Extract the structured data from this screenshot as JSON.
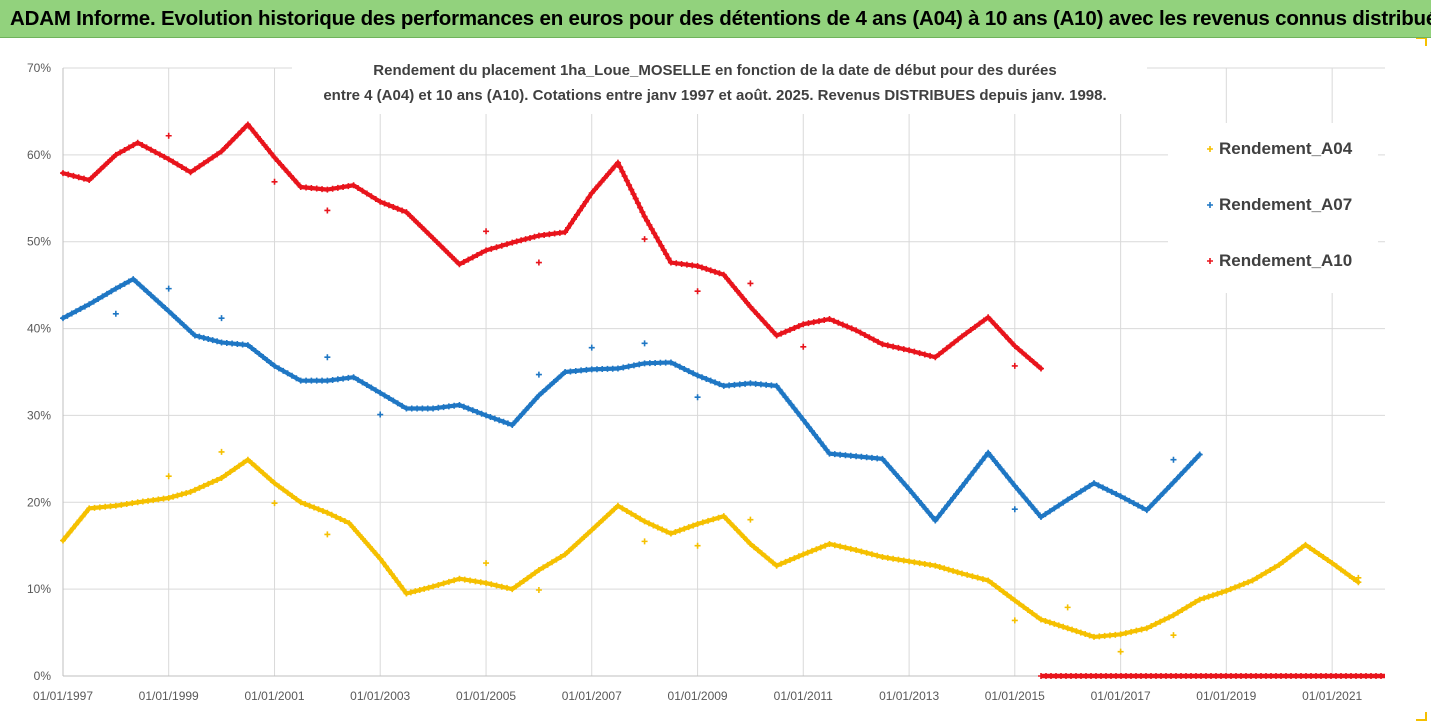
{
  "banner": {
    "title": "ADAM Informe. Evolution historique des performances en euros pour des détentions de 4 ans (A04) à 10 ans (A10) avec les revenus connus distribués"
  },
  "chart_data": {
    "type": "scatter",
    "title_line1": "Rendement du placement 1ha_Loue_MOSELLE en fonction de la date de début pour des durées",
    "title_line2": "entre 4 (A04) et 10 ans (A10). Cotations entre janv 1997 et août. 2025. Revenus DISTRIBUES depuis janv. 1998.",
    "xlabel": "",
    "ylabel": "",
    "x_range": [
      "1997-01-01",
      "2022-01-01"
    ],
    "ylim": [
      0,
      0.7
    ],
    "y_ticks": [
      0,
      0.1,
      0.2,
      0.3,
      0.4,
      0.5,
      0.6,
      0.7
    ],
    "y_tick_labels": [
      "0%",
      "10%",
      "20%",
      "30%",
      "40%",
      "50%",
      "60%",
      "70%"
    ],
    "x_tick_labels": [
      "01/01/1997",
      "01/01/1999",
      "01/01/2001",
      "01/01/2003",
      "01/01/2005",
      "01/01/2007",
      "01/01/2009",
      "01/01/2011",
      "01/01/2013",
      "01/01/2015",
      "01/01/2017",
      "01/01/2019",
      "01/01/2021"
    ],
    "x_tick_dates": [
      "1997-01-01",
      "1999-01-01",
      "2001-01-01",
      "2003-01-01",
      "2005-01-01",
      "2007-01-01",
      "2009-01-01",
      "2011-01-01",
      "2013-01-01",
      "2015-01-01",
      "2017-01-01",
      "2019-01-01",
      "2021-01-01"
    ],
    "grid": true,
    "legend_position": "right",
    "series": [
      {
        "name": "Rendement_A04",
        "color": "#f5c000",
        "points": [
          [
            "1997-01-01",
            0.156
          ],
          [
            "1997-07-01",
            0.193
          ],
          [
            "1998-01-01",
            0.196
          ],
          [
            "1998-06-01",
            0.2
          ],
          [
            "1999-01-01",
            0.205
          ],
          [
            "1999-06-01",
            0.212
          ],
          [
            "2000-01-01",
            0.228
          ],
          [
            "2000-07-01",
            0.249
          ],
          [
            "2001-01-01",
            0.222
          ],
          [
            "2001-07-01",
            0.2
          ],
          [
            "2002-01-01",
            0.188
          ],
          [
            "2002-06-01",
            0.176
          ],
          [
            "2003-01-01",
            0.135
          ],
          [
            "2003-07-01",
            0.095
          ],
          [
            "2004-01-01",
            0.103
          ],
          [
            "2004-07-01",
            0.112
          ],
          [
            "2005-01-01",
            0.107
          ],
          [
            "2005-07-01",
            0.1
          ],
          [
            "2006-01-01",
            0.122
          ],
          [
            "2006-07-01",
            0.14
          ],
          [
            "2007-01-01",
            0.168
          ],
          [
            "2007-07-01",
            0.196
          ],
          [
            "2008-01-01",
            0.178
          ],
          [
            "2008-07-01",
            0.164
          ],
          [
            "2009-01-01",
            0.175
          ],
          [
            "2009-07-01",
            0.184
          ],
          [
            "2010-01-01",
            0.152
          ],
          [
            "2010-07-01",
            0.127
          ],
          [
            "2011-01-01",
            0.14
          ],
          [
            "2011-07-01",
            0.152
          ],
          [
            "2012-01-01",
            0.145
          ],
          [
            "2012-07-01",
            0.137
          ],
          [
            "2013-01-01",
            0.132
          ],
          [
            "2013-07-01",
            0.127
          ],
          [
            "2014-01-01",
            0.118
          ],
          [
            "2014-07-01",
            0.11
          ],
          [
            "2015-01-01",
            0.087
          ],
          [
            "2015-07-01",
            0.065
          ],
          [
            "2016-01-01",
            0.055
          ],
          [
            "2016-07-01",
            0.045
          ],
          [
            "2017-01-01",
            0.048
          ],
          [
            "2017-07-01",
            0.055
          ],
          [
            "2018-01-01",
            0.07
          ],
          [
            "2018-07-01",
            0.088
          ],
          [
            "2019-01-01",
            0.098
          ],
          [
            "2019-07-01",
            0.11
          ],
          [
            "2020-01-01",
            0.128
          ],
          [
            "2020-07-01",
            0.151
          ],
          [
            "2021-01-01",
            0.13
          ],
          [
            "2021-07-01",
            0.108
          ]
        ],
        "outliers": [
          [
            "1999-01-01",
            0.23
          ],
          [
            "2000-01-01",
            0.258
          ],
          [
            "2001-01-01",
            0.199
          ],
          [
            "2002-01-01",
            0.163
          ],
          [
            "2005-01-01",
            0.13
          ],
          [
            "2006-01-01",
            0.099
          ],
          [
            "2008-01-01",
            0.155
          ],
          [
            "2009-01-01",
            0.15
          ],
          [
            "2010-01-01",
            0.18
          ],
          [
            "2015-01-01",
            0.064
          ],
          [
            "2016-01-01",
            0.079
          ],
          [
            "2017-01-01",
            0.028
          ],
          [
            "2018-01-01",
            0.047
          ],
          [
            "2021-07-01",
            0.113
          ]
        ]
      },
      {
        "name": "Rendement_A07",
        "color": "#1f77c4",
        "points": [
          [
            "1997-01-01",
            0.412
          ],
          [
            "1997-07-01",
            0.428
          ],
          [
            "1998-01-01",
            0.446
          ],
          [
            "1998-05-01",
            0.457
          ],
          [
            "1999-01-01",
            0.42
          ],
          [
            "1999-07-01",
            0.392
          ],
          [
            "2000-01-01",
            0.384
          ],
          [
            "2000-07-01",
            0.381
          ],
          [
            "2001-01-01",
            0.357
          ],
          [
            "2001-07-01",
            0.34
          ],
          [
            "2002-01-01",
            0.34
          ],
          [
            "2002-07-01",
            0.344
          ],
          [
            "2003-01-01",
            0.326
          ],
          [
            "2003-07-01",
            0.308
          ],
          [
            "2004-01-01",
            0.308
          ],
          [
            "2004-07-01",
            0.312
          ],
          [
            "2005-01-01",
            0.3
          ],
          [
            "2005-07-01",
            0.289
          ],
          [
            "2006-01-01",
            0.323
          ],
          [
            "2006-07-01",
            0.35
          ],
          [
            "2007-01-01",
            0.353
          ],
          [
            "2007-07-01",
            0.354
          ],
          [
            "2008-01-01",
            0.36
          ],
          [
            "2008-07-01",
            0.361
          ],
          [
            "2009-01-01",
            0.346
          ],
          [
            "2009-07-01",
            0.334
          ],
          [
            "2010-01-01",
            0.337
          ],
          [
            "2010-07-01",
            0.334
          ],
          [
            "2011-01-01",
            0.295
          ],
          [
            "2011-07-01",
            0.256
          ],
          [
            "2012-01-01",
            0.253
          ],
          [
            "2012-07-01",
            0.25
          ],
          [
            "2013-01-01",
            0.215
          ],
          [
            "2013-07-01",
            0.179
          ],
          [
            "2014-01-01",
            0.218
          ],
          [
            "2014-07-01",
            0.257
          ],
          [
            "2015-01-01",
            0.219
          ],
          [
            "2015-07-01",
            0.183
          ],
          [
            "2016-01-01",
            0.203
          ],
          [
            "2016-07-01",
            0.222
          ],
          [
            "2017-01-01",
            0.207
          ],
          [
            "2017-07-01",
            0.191
          ],
          [
            "2018-01-01",
            0.223
          ],
          [
            "2018-07-01",
            0.255
          ]
        ],
        "outliers": [
          [
            "1998-01-01",
            0.417
          ],
          [
            "1999-01-01",
            0.446
          ],
          [
            "2000-01-01",
            0.412
          ],
          [
            "2002-01-01",
            0.367
          ],
          [
            "2003-01-01",
            0.301
          ],
          [
            "2006-01-01",
            0.347
          ],
          [
            "2007-01-01",
            0.378
          ],
          [
            "2008-01-01",
            0.383
          ],
          [
            "2009-01-01",
            0.321
          ],
          [
            "2015-01-01",
            0.192
          ],
          [
            "2018-01-01",
            0.249
          ]
        ]
      },
      {
        "name": "Rendement_A10",
        "color": "#e8141c",
        "points": [
          [
            "1997-01-01",
            0.579
          ],
          [
            "1997-07-01",
            0.571
          ],
          [
            "1998-01-01",
            0.6
          ],
          [
            "1998-06-01",
            0.614
          ],
          [
            "1999-01-01",
            0.595
          ],
          [
            "1999-06-01",
            0.58
          ],
          [
            "2000-01-01",
            0.604
          ],
          [
            "2000-07-01",
            0.635
          ],
          [
            "2001-01-01",
            0.597
          ],
          [
            "2001-07-01",
            0.563
          ],
          [
            "2002-01-01",
            0.56
          ],
          [
            "2002-07-01",
            0.565
          ],
          [
            "2003-01-01",
            0.546
          ],
          [
            "2003-07-01",
            0.534
          ],
          [
            "2004-01-01",
            0.504
          ],
          [
            "2004-07-01",
            0.474
          ],
          [
            "2005-01-01",
            0.49
          ],
          [
            "2005-07-01",
            0.499
          ],
          [
            "2006-01-01",
            0.507
          ],
          [
            "2006-07-01",
            0.511
          ],
          [
            "2007-01-01",
            0.556
          ],
          [
            "2007-07-01",
            0.591
          ],
          [
            "2008-01-01",
            0.529
          ],
          [
            "2008-07-01",
            0.476
          ],
          [
            "2009-01-01",
            0.472
          ],
          [
            "2009-07-01",
            0.462
          ],
          [
            "2010-01-01",
            0.425
          ],
          [
            "2010-07-01",
            0.392
          ],
          [
            "2011-01-01",
            0.405
          ],
          [
            "2011-07-01",
            0.411
          ],
          [
            "2012-01-01",
            0.398
          ],
          [
            "2012-07-01",
            0.382
          ],
          [
            "2013-01-01",
            0.375
          ],
          [
            "2013-07-01",
            0.367
          ],
          [
            "2014-01-01",
            0.391
          ],
          [
            "2014-07-01",
            0.413
          ],
          [
            "2015-01-01",
            0.38
          ],
          [
            "2015-07-01",
            0.354
          ]
        ],
        "outliers": [
          [
            "1999-01-01",
            0.622
          ],
          [
            "2001-01-01",
            0.569
          ],
          [
            "2002-01-01",
            0.536
          ],
          [
            "2005-01-01",
            0.512
          ],
          [
            "2006-01-01",
            0.476
          ],
          [
            "2008-01-01",
            0.503
          ],
          [
            "2009-01-01",
            0.443
          ],
          [
            "2010-01-01",
            0.452
          ],
          [
            "2011-01-01",
            0.379
          ],
          [
            "2015-01-01",
            0.357
          ]
        ],
        "baseline": {
          "from": "2015-07-01",
          "to": "2022-01-01",
          "value": 0
        }
      }
    ]
  }
}
